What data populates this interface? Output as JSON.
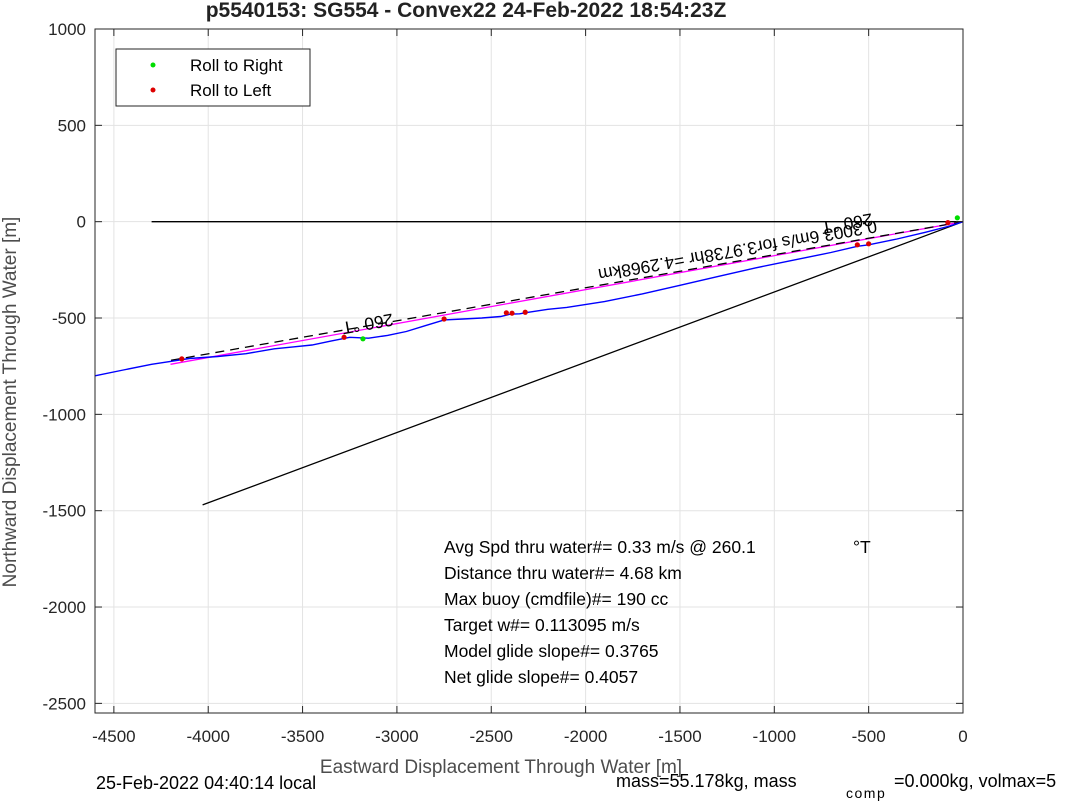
{
  "chart_data": {
    "type": "line",
    "title": "p5540153: SG554 - Convex22 24-Feb-2022 18:54:23Z",
    "xlabel": "Eastward Displacement Through Water [m]",
    "ylabel": "Northward Displacement Through Water [m]",
    "xlim": [
      -4600,
      0
    ],
    "ylim": [
      -2550,
      1000
    ],
    "grid": true,
    "xticks": [
      "-4500",
      "-4000",
      "-3500",
      "-3000",
      "-2500",
      "-2000",
      "-1500",
      "-1000",
      "-500",
      "0"
    ],
    "xtick_values": [
      -4500,
      -4000,
      -3500,
      -3000,
      -2500,
      -2000,
      -1500,
      -1000,
      -500,
      0
    ],
    "yticks": [
      "1000",
      "500",
      "0",
      "-500",
      "-1000",
      "-1500",
      "-2000",
      "-2500"
    ],
    "ytick_values": [
      1000,
      500,
      0,
      -500,
      -1000,
      -1500,
      -2000,
      -2500
    ],
    "legend": {
      "placement": "top-left",
      "entries": [
        {
          "label": "Roll to Right",
          "color": "#00dd00"
        },
        {
          "label": "Roll to Left",
          "color": "#dd0000"
        }
      ]
    },
    "series": [
      {
        "name": "track",
        "color": "#0000ff",
        "x": [
          0,
          -30,
          -80,
          -200,
          -350,
          -500,
          -560,
          -700,
          -900,
          -1100,
          -1300,
          -1500,
          -1700,
          -1900,
          -2100,
          -2200,
          -2300,
          -2350,
          -2400,
          -2450,
          -2550,
          -2650,
          -2750,
          -2850,
          -2950,
          -3050,
          -3150,
          -3250,
          -3350,
          -3450,
          -3550,
          -3650,
          -3800,
          -3950,
          -4100,
          -4200,
          -4300,
          -4450,
          -4600
        ],
        "y": [
          0,
          -10,
          -25,
          -55,
          -90,
          -120,
          -128,
          -160,
          -200,
          -240,
          -285,
          -330,
          -375,
          -415,
          -445,
          -455,
          -470,
          -478,
          -480,
          -492,
          -500,
          -505,
          -510,
          -540,
          -570,
          -590,
          -605,
          -600,
          -620,
          -640,
          -650,
          -660,
          -685,
          -700,
          -710,
          -725,
          -740,
          -770,
          -800
        ]
      },
      {
        "name": "heading line",
        "color": "#ff00ff",
        "x": [
          0,
          -4200
        ],
        "y": [
          0,
          -740
        ]
      },
      {
        "name": "dashed heading",
        "color": "#000000",
        "dashed": true,
        "x": [
          0,
          -4200
        ],
        "y": [
          0,
          -720
        ]
      },
      {
        "name": "east-west reference",
        "color": "#000000",
        "x": [
          0,
          -4300
        ],
        "y": [
          0,
          0
        ]
      },
      {
        "name": "drift line",
        "color": "#000000",
        "x": [
          0,
          -4030
        ],
        "y": [
          0,
          -1470
        ]
      }
    ],
    "roll_right_points": {
      "x": [
        -30,
        -3180
      ],
      "y": [
        20,
        -608
      ]
    },
    "roll_left_points": {
      "x": [
        -80,
        -500,
        -560,
        -2320,
        -2390,
        -2420,
        -2750,
        -3280,
        -4140
      ],
      "y": [
        -5,
        -115,
        -120,
        -470,
        -475,
        -473,
        -505,
        -600,
        -712
      ]
    },
    "annotations": [
      {
        "text": "260 °T",
        "x": -3160,
        "y": -500,
        "angle": 170
      },
      {
        "text": "260 °T",
        "x": -620,
        "y": 20,
        "angle": 170
      },
      {
        "text": "0.3003 6m/s for3.9738hr =4.2968km",
        "x": -1200,
        "y": -120,
        "angle": 170
      }
    ],
    "stats": [
      "Avg Spd thru water#=  0.33 m/s @ 260.1",
      "Distance thru water#=  4.68 km",
      "Max buoy (cmdfile)#= 190 cc",
      "Target w#= 0.113095 m/s",
      "Model glide slope#= 0.3765",
      "Net glide slope#= 0.4057"
    ],
    "stats_unit": "°T",
    "footer_left": "25-Feb-2022 04:40:14 local",
    "footer_right_a": "mass=55.178kg, mass",
    "footer_right_sub": "comp",
    "footer_right_b": "=0.000kg, volmax=5"
  }
}
